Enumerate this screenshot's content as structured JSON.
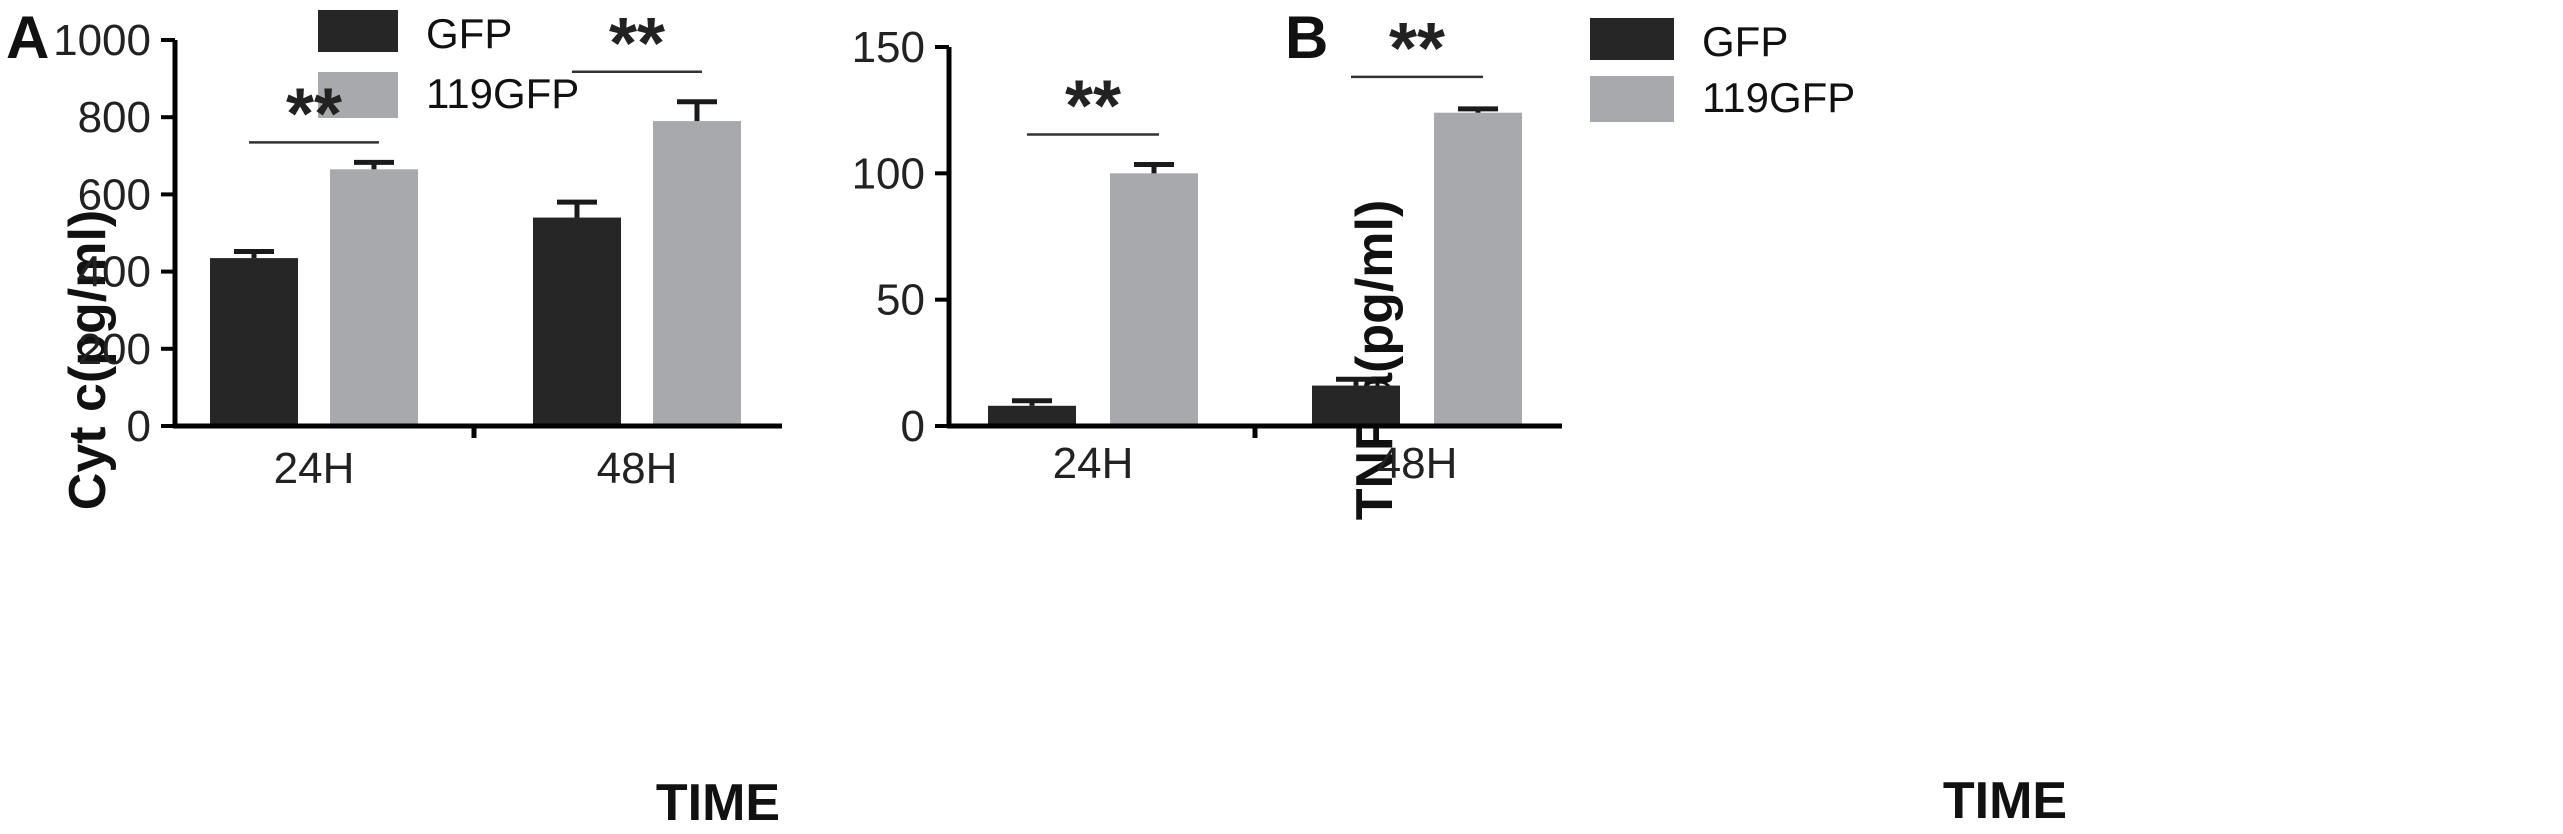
{
  "colors": {
    "gfp": "#262626",
    "gfp119": "#a7a9ac",
    "axis": "#000000",
    "text": "#222222"
  },
  "legend": [
    {
      "label": "GFP",
      "color": "#262626"
    },
    {
      "label": "119GFP",
      "color": "#a7a9ac"
    }
  ],
  "chart_data": [
    {
      "type": "bar",
      "panel": "A",
      "categories": [
        "24H",
        "48H"
      ],
      "xlabel": "TIME",
      "ylabel": "Cyt c(pg/ml)",
      "ylim": [
        0,
        1000
      ],
      "yticks": [
        0,
        200,
        400,
        600,
        800,
        1000
      ],
      "series": [
        {
          "name": "GFP",
          "values": [
            435,
            540
          ],
          "errors": [
            17,
            40
          ]
        },
        {
          "name": "119GFP",
          "values": [
            665,
            790
          ],
          "errors": [
            18,
            50
          ]
        }
      ],
      "significance": [
        {
          "category": "24H",
          "label": "**"
        },
        {
          "category": "48H",
          "label": "**"
        }
      ]
    },
    {
      "type": "bar",
      "panel": "B",
      "categories": [
        "24H",
        "48H"
      ],
      "xlabel": "TIME",
      "ylabel": "TNF-a(pg/ml)",
      "ylim": [
        0,
        150
      ],
      "yticks": [
        0,
        50,
        100,
        150
      ],
      "series": [
        {
          "name": "GFP",
          "values": [
            8,
            16
          ],
          "errors": [
            2,
            2.5
          ]
        },
        {
          "name": "119GFP",
          "values": [
            100,
            124
          ],
          "errors": [
            3.5,
            1.5
          ]
        }
      ],
      "significance": [
        {
          "category": "24H",
          "label": "**"
        },
        {
          "category": "48H",
          "label": "**"
        }
      ]
    }
  ]
}
